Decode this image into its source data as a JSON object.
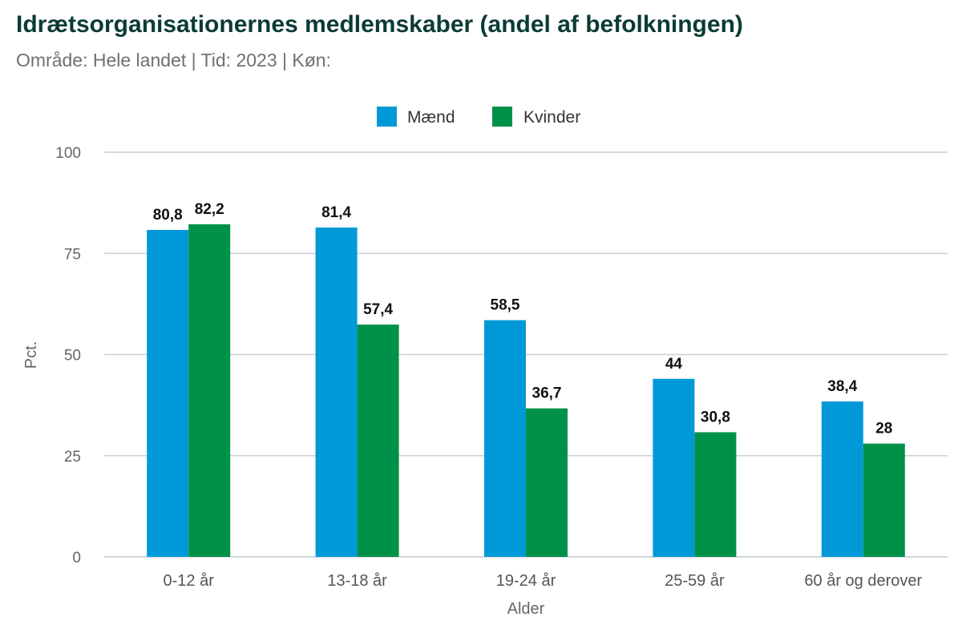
{
  "header": {
    "title": "Idrætsorganisationernes medlemskaber (andel af befolkningen)",
    "subtitle": "Område: Hele landet | Tid: 2023 | Køn:"
  },
  "chart_data": {
    "type": "bar",
    "categories": [
      "0-12 år",
      "13-18 år",
      "19-24 år",
      "25-59 år",
      "60 år og derover"
    ],
    "series": [
      {
        "name": "Mænd",
        "color": "#0099d8",
        "values": [
          80.8,
          81.4,
          58.5,
          44,
          38.4
        ]
      },
      {
        "name": "Kvinder",
        "color": "#009149",
        "values": [
          82.2,
          57.4,
          36.7,
          30.8,
          28
        ]
      }
    ],
    "xlabel": "Alder",
    "ylabel": "Pct.",
    "ylim": [
      0,
      100
    ],
    "yticks": [
      0,
      25,
      50,
      75,
      100
    ],
    "grid": true,
    "legend_position": "top-center",
    "decimal_separator": ","
  }
}
